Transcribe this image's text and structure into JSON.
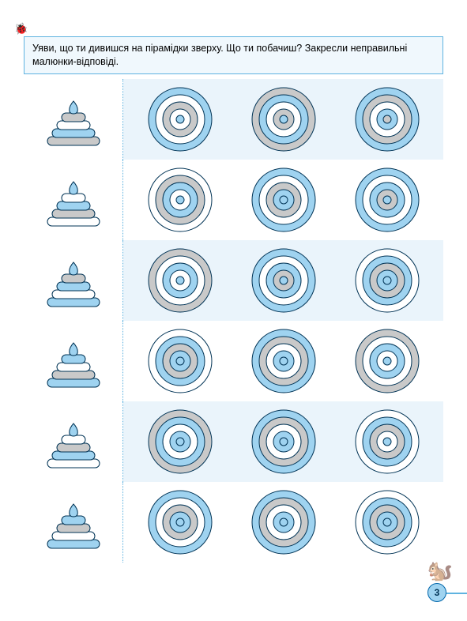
{
  "colors": {
    "blue": "#9fd3f0",
    "gray": "#c9c9c9",
    "white": "#ffffff",
    "stroke": "#003355",
    "page_bg": "#ffffff",
    "box_border": "#5fb3e0",
    "box_bg": "#f0f8fd",
    "alt_row_bg": "#eaf4fb"
  },
  "instruction": "Уяви, що ти дивишся на пірамідки зверху. Що ти побачиш? Закресли неправильні малюнки-відповіді.",
  "page_number": "3",
  "rows": [
    {
      "alt_bg": true,
      "pyramid": [
        "blue",
        "gray",
        "white",
        "blue",
        "gray"
      ],
      "options": [
        [
          "blue",
          "white",
          "gray",
          "white",
          "blue"
        ],
        [
          "gray",
          "blue",
          "white",
          "gray",
          "blue"
        ],
        [
          "blue",
          "gray",
          "white",
          "blue",
          "gray"
        ]
      ]
    },
    {
      "alt_bg": false,
      "pyramid": [
        "blue",
        "white",
        "blue",
        "gray",
        "white"
      ],
      "options": [
        [
          "white",
          "gray",
          "blue",
          "white",
          "blue"
        ],
        [
          "blue",
          "white",
          "gray",
          "blue",
          "blue"
        ],
        [
          "blue",
          "white",
          "blue",
          "gray",
          "blue"
        ]
      ]
    },
    {
      "alt_bg": true,
      "pyramid": [
        "blue",
        "gray",
        "blue",
        "white",
        "blue"
      ],
      "options": [
        [
          "gray",
          "white",
          "blue",
          "white",
          "blue"
        ],
        [
          "blue",
          "white",
          "blue",
          "gray",
          "blue"
        ],
        [
          "white",
          "blue",
          "gray",
          "blue",
          "blue"
        ]
      ]
    },
    {
      "alt_bg": false,
      "pyramid": [
        "blue",
        "blue",
        "white",
        "gray",
        "blue"
      ],
      "options": [
        [
          "white",
          "blue",
          "gray",
          "blue",
          "blue"
        ],
        [
          "blue",
          "gray",
          "white",
          "blue",
          "blue"
        ],
        [
          "gray",
          "white",
          "blue",
          "white",
          "blue"
        ]
      ]
    },
    {
      "alt_bg": true,
      "pyramid": [
        "blue",
        "white",
        "gray",
        "blue",
        "white"
      ],
      "options": [
        [
          "gray",
          "blue",
          "white",
          "blue",
          "blue"
        ],
        [
          "blue",
          "gray",
          "white",
          "blue",
          "blue"
        ],
        [
          "white",
          "blue",
          "gray",
          "white",
          "blue"
        ]
      ]
    },
    {
      "alt_bg": false,
      "pyramid": [
        "blue",
        "blue",
        "gray",
        "white",
        "blue"
      ],
      "options": [
        [
          "blue",
          "white",
          "gray",
          "blue",
          "blue"
        ],
        [
          "blue",
          "gray",
          "white",
          "blue",
          "blue"
        ],
        [
          "white",
          "blue",
          "gray",
          "blue",
          "blue"
        ]
      ]
    }
  ]
}
